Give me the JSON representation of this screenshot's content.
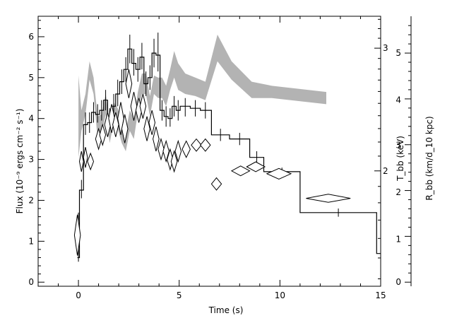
{
  "chart_data": {
    "type": "line",
    "xlabel": "Time (s)",
    "ylabel_left": "Flux (10⁻⁹ ergs cm⁻² s⁻¹)",
    "ylabel_right1": "T_bb (keV)",
    "ylabel_right2": "R_bb (km/d_10 kpc)",
    "xlim": [
      -2,
      15
    ],
    "ylim": [
      -0.1,
      6.5
    ],
    "x_ticks": [
      0,
      5,
      10,
      15
    ],
    "y_ticks": [
      0,
      1,
      2,
      3,
      4,
      5,
      6
    ],
    "right1_axis": {
      "scale": "log",
      "ticks": [
        {
          "label": "2",
          "value": 2,
          "y_equiv": 2.72
        },
        {
          "label": "3",
          "value": 3,
          "y_equiv": 5.72
        }
      ]
    },
    "right2_axis": {
      "ticks": [
        {
          "label": "0",
          "y_equiv": 0.0
        },
        {
          "label": "1",
          "y_equiv": 1.05
        },
        {
          "label": "2",
          "y_equiv": 2.2
        },
        {
          "label": "3",
          "y_equiv": 3.35
        },
        {
          "label": "4",
          "y_equiv": 4.45
        },
        {
          "label": "5",
          "y_equiv": 5.6
        }
      ]
    },
    "series": [
      {
        "kind": "flux_step",
        "color": "#000000",
        "steps": [
          {
            "x0": -0.05,
            "x1": 0.05,
            "y": 0.6
          },
          {
            "x0": 0.05,
            "x1": 0.25,
            "y": 2.25
          },
          {
            "x0": 0.25,
            "x1": 0.45,
            "y": 3.85
          },
          {
            "x0": 0.45,
            "x1": 0.65,
            "y": 3.9
          },
          {
            "x0": 0.65,
            "x1": 0.85,
            "y": 4.15
          },
          {
            "x0": 0.85,
            "x1": 1.05,
            "y": 4.1
          },
          {
            "x0": 1.05,
            "x1": 1.25,
            "y": 4.2
          },
          {
            "x0": 1.25,
            "x1": 1.45,
            "y": 4.45
          },
          {
            "x0": 1.45,
            "x1": 1.65,
            "y": 4.0
          },
          {
            "x0": 1.65,
            "x1": 1.85,
            "y": 4.3
          },
          {
            "x0": 1.85,
            "x1": 2.05,
            "y": 4.6
          },
          {
            "x0": 2.05,
            "x1": 2.25,
            "y": 4.9
          },
          {
            "x0": 2.25,
            "x1": 2.45,
            "y": 5.2
          },
          {
            "x0": 2.45,
            "x1": 2.65,
            "y": 5.7
          },
          {
            "x0": 2.65,
            "x1": 2.85,
            "y": 5.35
          },
          {
            "x0": 2.85,
            "x1": 3.05,
            "y": 5.2
          },
          {
            "x0": 3.05,
            "x1": 3.25,
            "y": 5.5
          },
          {
            "x0": 3.25,
            "x1": 3.45,
            "y": 4.85
          },
          {
            "x0": 3.45,
            "x1": 3.65,
            "y": 5.0
          },
          {
            "x0": 3.65,
            "x1": 3.85,
            "y": 5.6
          },
          {
            "x0": 3.85,
            "x1": 4.05,
            "y": 5.55
          },
          {
            "x0": 4.05,
            "x1": 4.25,
            "y": 4.2
          },
          {
            "x0": 4.25,
            "x1": 4.45,
            "y": 4.05
          },
          {
            "x0": 4.45,
            "x1": 4.65,
            "y": 4.0
          },
          {
            "x0": 4.65,
            "x1": 4.85,
            "y": 4.3
          },
          {
            "x0": 4.85,
            "x1": 5.05,
            "y": 4.2
          },
          {
            "x0": 5.05,
            "x1": 5.55,
            "y": 4.3
          },
          {
            "x0": 5.55,
            "x1": 6.05,
            "y": 4.25
          },
          {
            "x0": 6.05,
            "x1": 6.6,
            "y": 4.2
          },
          {
            "x0": 6.6,
            "x1": 7.5,
            "y": 3.6
          },
          {
            "x0": 7.5,
            "x1": 8.5,
            "y": 3.5
          },
          {
            "x0": 8.5,
            "x1": 9.2,
            "y": 3.05
          },
          {
            "x0": 9.2,
            "x1": 11.0,
            "y": 2.7
          },
          {
            "x0": 11.0,
            "x1": 14.8,
            "y": 1.7
          },
          {
            "x0": 14.8,
            "x1": 15.0,
            "y": 0.7
          }
        ],
        "errorbars": [
          {
            "x": 0.0,
            "lo": 0.5,
            "hi": 1.7
          },
          {
            "x": 0.15,
            "lo": 2.05,
            "hi": 2.5
          },
          {
            "x": 0.35,
            "lo": 3.6,
            "hi": 4.15
          },
          {
            "x": 0.55,
            "lo": 3.65,
            "hi": 4.15
          },
          {
            "x": 0.75,
            "lo": 3.9,
            "hi": 4.4
          },
          {
            "x": 0.95,
            "lo": 3.9,
            "hi": 4.35
          },
          {
            "x": 1.15,
            "lo": 3.95,
            "hi": 4.45
          },
          {
            "x": 1.35,
            "lo": 4.2,
            "hi": 4.7
          },
          {
            "x": 1.55,
            "lo": 3.75,
            "hi": 4.25
          },
          {
            "x": 1.75,
            "lo": 4.0,
            "hi": 4.6
          },
          {
            "x": 1.95,
            "lo": 4.3,
            "hi": 4.95
          },
          {
            "x": 2.15,
            "lo": 4.6,
            "hi": 5.2
          },
          {
            "x": 2.35,
            "lo": 4.9,
            "hi": 5.5
          },
          {
            "x": 2.55,
            "lo": 5.35,
            "hi": 6.05
          },
          {
            "x": 2.75,
            "lo": 5.05,
            "hi": 5.7
          },
          {
            "x": 2.95,
            "lo": 4.9,
            "hi": 5.5
          },
          {
            "x": 3.15,
            "lo": 5.2,
            "hi": 5.85
          },
          {
            "x": 3.35,
            "lo": 4.55,
            "hi": 5.15
          },
          {
            "x": 3.55,
            "lo": 4.7,
            "hi": 5.3
          },
          {
            "x": 3.75,
            "lo": 5.25,
            "hi": 5.95
          },
          {
            "x": 3.95,
            "lo": 5.15,
            "hi": 6.1
          },
          {
            "x": 4.15,
            "lo": 3.95,
            "hi": 4.45
          },
          {
            "x": 4.35,
            "lo": 3.8,
            "hi": 4.3
          },
          {
            "x": 4.55,
            "lo": 3.8,
            "hi": 4.25
          },
          {
            "x": 4.75,
            "lo": 4.05,
            "hi": 4.55
          },
          {
            "x": 4.95,
            "lo": 3.95,
            "hi": 4.45
          },
          {
            "x": 5.3,
            "lo": 4.05,
            "hi": 4.5
          },
          {
            "x": 5.8,
            "lo": 4.05,
            "hi": 4.45
          },
          {
            "x": 6.3,
            "lo": 4.0,
            "hi": 4.4
          },
          {
            "x": 7.05,
            "lo": 3.45,
            "hi": 3.75
          },
          {
            "x": 8.0,
            "lo": 3.35,
            "hi": 3.65
          },
          {
            "x": 8.85,
            "lo": 2.9,
            "hi": 3.2
          },
          {
            "x": 10.1,
            "lo": 2.6,
            "hi": 2.8
          },
          {
            "x": 12.9,
            "lo": 1.6,
            "hi": 1.8
          }
        ]
      },
      {
        "kind": "temperature_band",
        "color": "#b3b3b3",
        "points": [
          {
            "x": 0.0,
            "lo": 3.05,
            "hi": 5.05
          },
          {
            "x": 0.15,
            "lo": 3.7,
            "hi": 4.2
          },
          {
            "x": 0.35,
            "lo": 4.1,
            "hi": 4.6
          },
          {
            "x": 0.55,
            "lo": 4.95,
            "hi": 5.4
          },
          {
            "x": 0.75,
            "lo": 4.6,
            "hi": 5.0
          },
          {
            "x": 0.95,
            "lo": 3.5,
            "hi": 4.05
          },
          {
            "x": 1.15,
            "lo": 3.6,
            "hi": 4.1
          },
          {
            "x": 1.35,
            "lo": 4.1,
            "hi": 4.6
          },
          {
            "x": 1.55,
            "lo": 3.4,
            "hi": 3.95
          },
          {
            "x": 1.75,
            "lo": 3.9,
            "hi": 4.4
          },
          {
            "x": 1.95,
            "lo": 3.75,
            "hi": 4.25
          },
          {
            "x": 2.15,
            "lo": 3.4,
            "hi": 3.9
          },
          {
            "x": 2.35,
            "lo": 3.2,
            "hi": 3.7
          },
          {
            "x": 2.55,
            "lo": 3.7,
            "hi": 4.2
          },
          {
            "x": 2.75,
            "lo": 3.5,
            "hi": 4.0
          },
          {
            "x": 2.95,
            "lo": 4.15,
            "hi": 4.65
          },
          {
            "x": 3.15,
            "lo": 4.6,
            "hi": 5.1
          },
          {
            "x": 3.35,
            "lo": 4.6,
            "hi": 5.1
          },
          {
            "x": 3.55,
            "lo": 4.05,
            "hi": 4.55
          },
          {
            "x": 3.75,
            "lo": 4.6,
            "hi": 5.05
          },
          {
            "x": 3.95,
            "lo": 4.5,
            "hi": 5.0
          },
          {
            "x": 4.15,
            "lo": 4.5,
            "hi": 5.0
          },
          {
            "x": 4.35,
            "lo": 4.3,
            "hi": 4.8
          },
          {
            "x": 4.55,
            "lo": 4.7,
            "hi": 5.2
          },
          {
            "x": 4.75,
            "lo": 5.0,
            "hi": 5.65
          },
          {
            "x": 4.95,
            "lo": 4.7,
            "hi": 5.35
          },
          {
            "x": 5.3,
            "lo": 4.6,
            "hi": 5.1
          },
          {
            "x": 5.8,
            "lo": 4.55,
            "hi": 5.0
          },
          {
            "x": 6.3,
            "lo": 4.45,
            "hi": 4.9
          },
          {
            "x": 6.9,
            "lo": 5.4,
            "hi": 6.05
          },
          {
            "x": 7.6,
            "lo": 4.95,
            "hi": 5.4
          },
          {
            "x": 8.6,
            "lo": 4.5,
            "hi": 4.9
          },
          {
            "x": 9.6,
            "lo": 4.5,
            "hi": 4.8
          },
          {
            "x": 12.3,
            "lo": 4.35,
            "hi": 4.65
          }
        ]
      },
      {
        "kind": "radius_diamonds",
        "color": "#000000",
        "points": [
          {
            "x": -0.05,
            "x0": -0.2,
            "x1": 0.1,
            "y": 1.15,
            "lo": 0.65,
            "hi": 1.65
          },
          {
            "x": 0.15,
            "x0": 0.05,
            "x1": 0.25,
            "y": 2.95,
            "lo": 2.7,
            "hi": 3.2
          },
          {
            "x": 0.35,
            "x0": 0.25,
            "x1": 0.45,
            "y": 3.05,
            "lo": 2.8,
            "hi": 3.3
          },
          {
            "x": 0.6,
            "x0": 0.45,
            "x1": 0.75,
            "y": 2.95,
            "lo": 2.75,
            "hi": 3.15
          },
          {
            "x": 1.0,
            "x0": 0.85,
            "x1": 1.15,
            "y": 3.5,
            "lo": 3.25,
            "hi": 3.75
          },
          {
            "x": 1.2,
            "x0": 1.05,
            "x1": 1.35,
            "y": 3.6,
            "lo": 3.35,
            "hi": 3.85
          },
          {
            "x": 1.45,
            "x0": 1.3,
            "x1": 1.6,
            "y": 3.85,
            "lo": 3.55,
            "hi": 4.15
          },
          {
            "x": 1.65,
            "x0": 1.5,
            "x1": 1.8,
            "y": 4.0,
            "lo": 3.65,
            "hi": 4.35
          },
          {
            "x": 1.85,
            "x0": 1.7,
            "x1": 2.0,
            "y": 3.85,
            "lo": 3.55,
            "hi": 4.15
          },
          {
            "x": 2.1,
            "x0": 1.95,
            "x1": 2.25,
            "y": 4.0,
            "lo": 3.6,
            "hi": 4.4
          },
          {
            "x": 2.3,
            "x0": 2.15,
            "x1": 2.45,
            "y": 3.75,
            "lo": 3.4,
            "hi": 4.1
          },
          {
            "x": 2.5,
            "x0": 2.35,
            "x1": 2.65,
            "y": 4.85,
            "lo": 4.5,
            "hi": 5.2
          },
          {
            "x": 2.75,
            "x0": 2.6,
            "x1": 2.9,
            "y": 4.3,
            "lo": 3.95,
            "hi": 4.65
          },
          {
            "x": 3.0,
            "x0": 2.85,
            "x1": 3.15,
            "y": 4.2,
            "lo": 3.9,
            "hi": 4.5
          },
          {
            "x": 3.2,
            "x0": 3.05,
            "x1": 3.35,
            "y": 4.3,
            "lo": 4.0,
            "hi": 4.6
          },
          {
            "x": 3.4,
            "x0": 3.25,
            "x1": 3.55,
            "y": 3.75,
            "lo": 3.45,
            "hi": 4.05
          },
          {
            "x": 3.65,
            "x0": 3.5,
            "x1": 3.8,
            "y": 3.9,
            "lo": 3.6,
            "hi": 4.2
          },
          {
            "x": 3.85,
            "x0": 3.7,
            "x1": 4.0,
            "y": 3.5,
            "lo": 3.2,
            "hi": 3.8
          },
          {
            "x": 4.1,
            "x0": 3.95,
            "x1": 4.25,
            "y": 3.25,
            "lo": 3.0,
            "hi": 3.5
          },
          {
            "x": 4.35,
            "x0": 4.2,
            "x1": 4.5,
            "y": 3.2,
            "lo": 2.95,
            "hi": 3.45
          },
          {
            "x": 4.55,
            "x0": 4.4,
            "x1": 4.7,
            "y": 3.0,
            "lo": 2.75,
            "hi": 3.25
          },
          {
            "x": 4.75,
            "x0": 4.6,
            "x1": 4.9,
            "y": 2.95,
            "lo": 2.7,
            "hi": 3.2
          },
          {
            "x": 4.95,
            "x0": 4.8,
            "x1": 5.1,
            "y": 3.2,
            "lo": 2.95,
            "hi": 3.45
          },
          {
            "x": 5.35,
            "x0": 5.15,
            "x1": 5.55,
            "y": 3.25,
            "lo": 3.05,
            "hi": 3.45
          },
          {
            "x": 5.85,
            "x0": 5.6,
            "x1": 6.1,
            "y": 3.35,
            "lo": 3.2,
            "hi": 3.5
          },
          {
            "x": 6.3,
            "x0": 6.05,
            "x1": 6.55,
            "y": 3.35,
            "lo": 3.2,
            "hi": 3.5
          },
          {
            "x": 6.85,
            "x0": 6.6,
            "x1": 7.1,
            "y": 2.4,
            "lo": 2.25,
            "hi": 2.55
          },
          {
            "x": 8.05,
            "x0": 7.6,
            "x1": 8.5,
            "y": 2.72,
            "lo": 2.6,
            "hi": 2.84
          },
          {
            "x": 8.8,
            "x0": 8.35,
            "x1": 9.25,
            "y": 2.82,
            "lo": 2.7,
            "hi": 2.94
          },
          {
            "x": 9.95,
            "x0": 9.35,
            "x1": 10.55,
            "y": 2.65,
            "lo": 2.52,
            "hi": 2.78
          },
          {
            "x": 12.4,
            "x0": 11.3,
            "x1": 13.5,
            "y": 2.05,
            "lo": 1.95,
            "hi": 2.15
          }
        ]
      }
    ]
  }
}
